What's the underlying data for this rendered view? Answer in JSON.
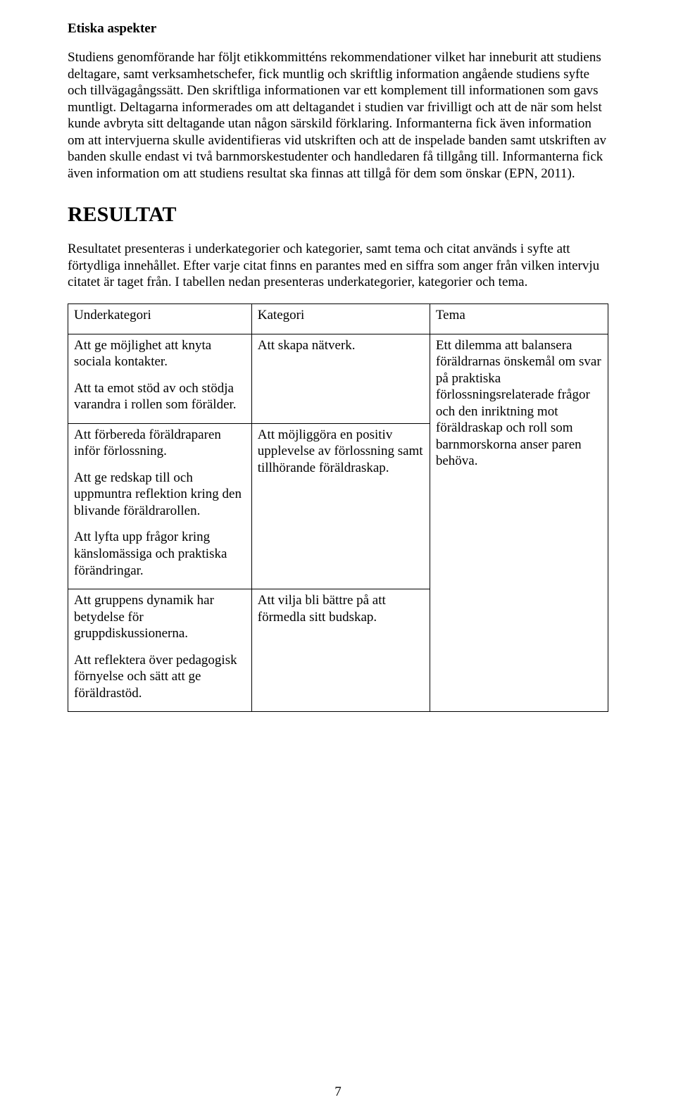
{
  "section1": {
    "heading": "Etiska aspekter",
    "paragraph": "Studiens genomförande har följt etikkommitténs rekommendationer vilket har inneburit att studiens deltagare, samt verksamhetschefer, fick muntlig och skriftlig information angående studiens syfte och tillvägagångssätt. Den skriftliga informationen var ett komplement till informationen som gavs muntligt. Deltagarna informerades om att deltagandet i studien var frivilligt och att de när som helst kunde avbryta sitt deltagande utan någon särskild förklaring. Informanterna fick även information om att intervjuerna skulle avidentifieras vid utskriften och att de inspelade banden samt utskriften av banden skulle endast vi två barnmorskestudenter och handledaren få tillgång till. Informanterna fick även information om att studiens resultat ska finnas att tillgå för dem som önskar (EPN, 2011)."
  },
  "section2": {
    "heading": "RESULTAT",
    "paragraph": "Resultatet presenteras i underkategorier och kategorier, samt tema och citat används i syfte att förtydliga innehållet. Efter varje citat finns en parantes med en siffra som anger från vilken intervju citatet är taget från. I tabellen nedan presenteras underkategorier, kategorier och tema."
  },
  "table": {
    "headers": {
      "col_a": "Underkategori",
      "col_b": "Kategori",
      "col_c": "Tema"
    },
    "row1": {
      "a_block1": "Att ge möjlighet att knyta sociala kontakter.",
      "a_block2": "Att ta emot stöd av och stödja varandra i rollen som förälder.",
      "b": "Att skapa nätverk.",
      "c": "Ett dilemma att balansera föräldrarnas önskemål om svar på praktiska förlossningsrelaterade frågor och den inriktning mot föräldraskap och roll som barnmorskorna anser paren behöva."
    },
    "row2": {
      "a_block1": "Att förbereda föräldraparen inför förlossning.",
      "a_block2": "Att ge redskap till och uppmuntra reflektion kring den blivande föräldrarollen.",
      "a_block3": "Att lyfta upp frågor kring känslomässiga och praktiska förändringar.",
      "b": "Att möjliggöra en positiv upplevelse av förlossning samt tillhörande föräldraskap."
    },
    "row3": {
      "a_block1": "Att gruppens dynamik har betydelse för gruppdiskussionerna.",
      "a_block2": "Att reflektera över pedagogisk förnyelse och sätt att ge föräldrastöd.",
      "b": "Att vilja bli bättre på att förmedla sitt budskap."
    }
  },
  "page_number": "7"
}
